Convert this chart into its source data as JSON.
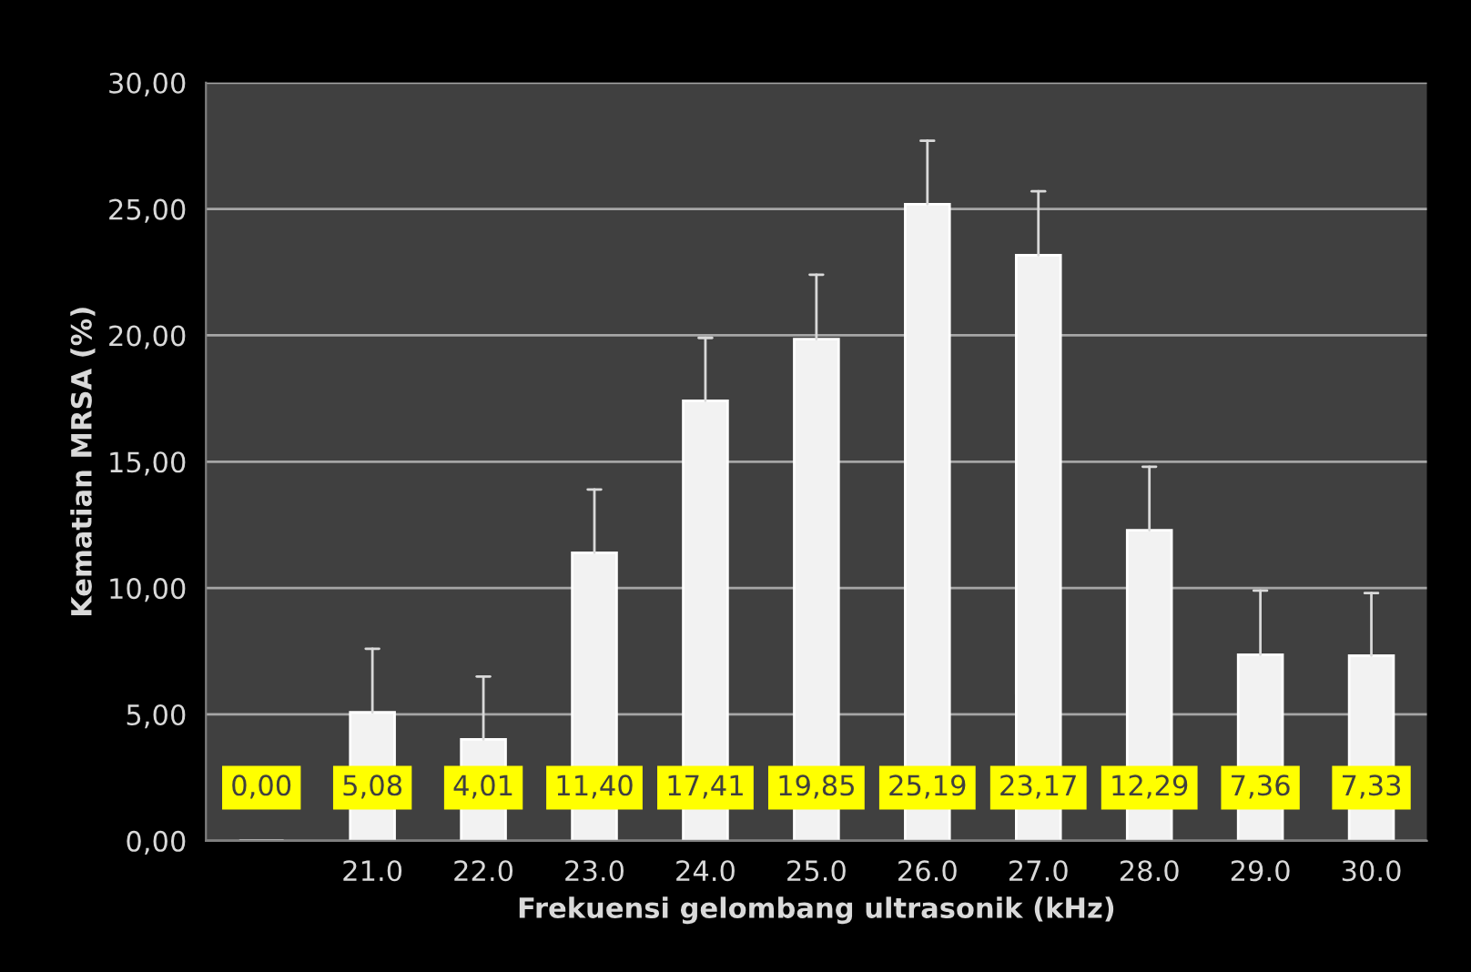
{
  "chart_data": {
    "type": "bar",
    "xlabel": "Frekuensi gelombang ultrasonik (kHz)",
    "ylabel": "Kematian MRSA (%)",
    "categories": [
      null,
      "21.0",
      "22.0",
      "23.0",
      "24.0",
      "25.0",
      "26.0",
      "27.0",
      "28.0",
      "29.0",
      "30.0"
    ],
    "values": [
      0.0,
      5.08,
      4.01,
      11.4,
      17.41,
      19.85,
      25.19,
      23.17,
      12.29,
      7.36,
      7.33
    ],
    "value_labels": [
      "0,00",
      "5,08",
      "4,01",
      "11,40",
      "17,41",
      "19,85",
      "25,19",
      "23,17",
      "12,29",
      "7,36",
      "7,33"
    ],
    "errors": [
      null,
      [
        5.08,
        7.6
      ],
      [
        4.01,
        6.5
      ],
      [
        11.4,
        13.9
      ],
      [
        17.41,
        19.9
      ],
      [
        19.85,
        22.4
      ],
      [
        25.19,
        27.7
      ],
      [
        23.17,
        25.7
      ],
      [
        12.29,
        14.8
      ],
      [
        7.36,
        9.9
      ],
      [
        7.33,
        9.8
      ]
    ],
    "color": "#f2f2f2",
    "ylim": [
      0,
      30
    ],
    "yticks": [
      {
        "value": 0,
        "label": "0,00"
      },
      {
        "value": 5,
        "label": "5,00"
      },
      {
        "value": 10,
        "label": "10,00"
      },
      {
        "value": 15,
        "label": "15,00"
      },
      {
        "value": 20,
        "label": "20,00"
      },
      {
        "value": 25,
        "label": "25,00"
      },
      {
        "value": 30,
        "label": "30,00"
      }
    ],
    "grid": "y",
    "legend": false
  }
}
